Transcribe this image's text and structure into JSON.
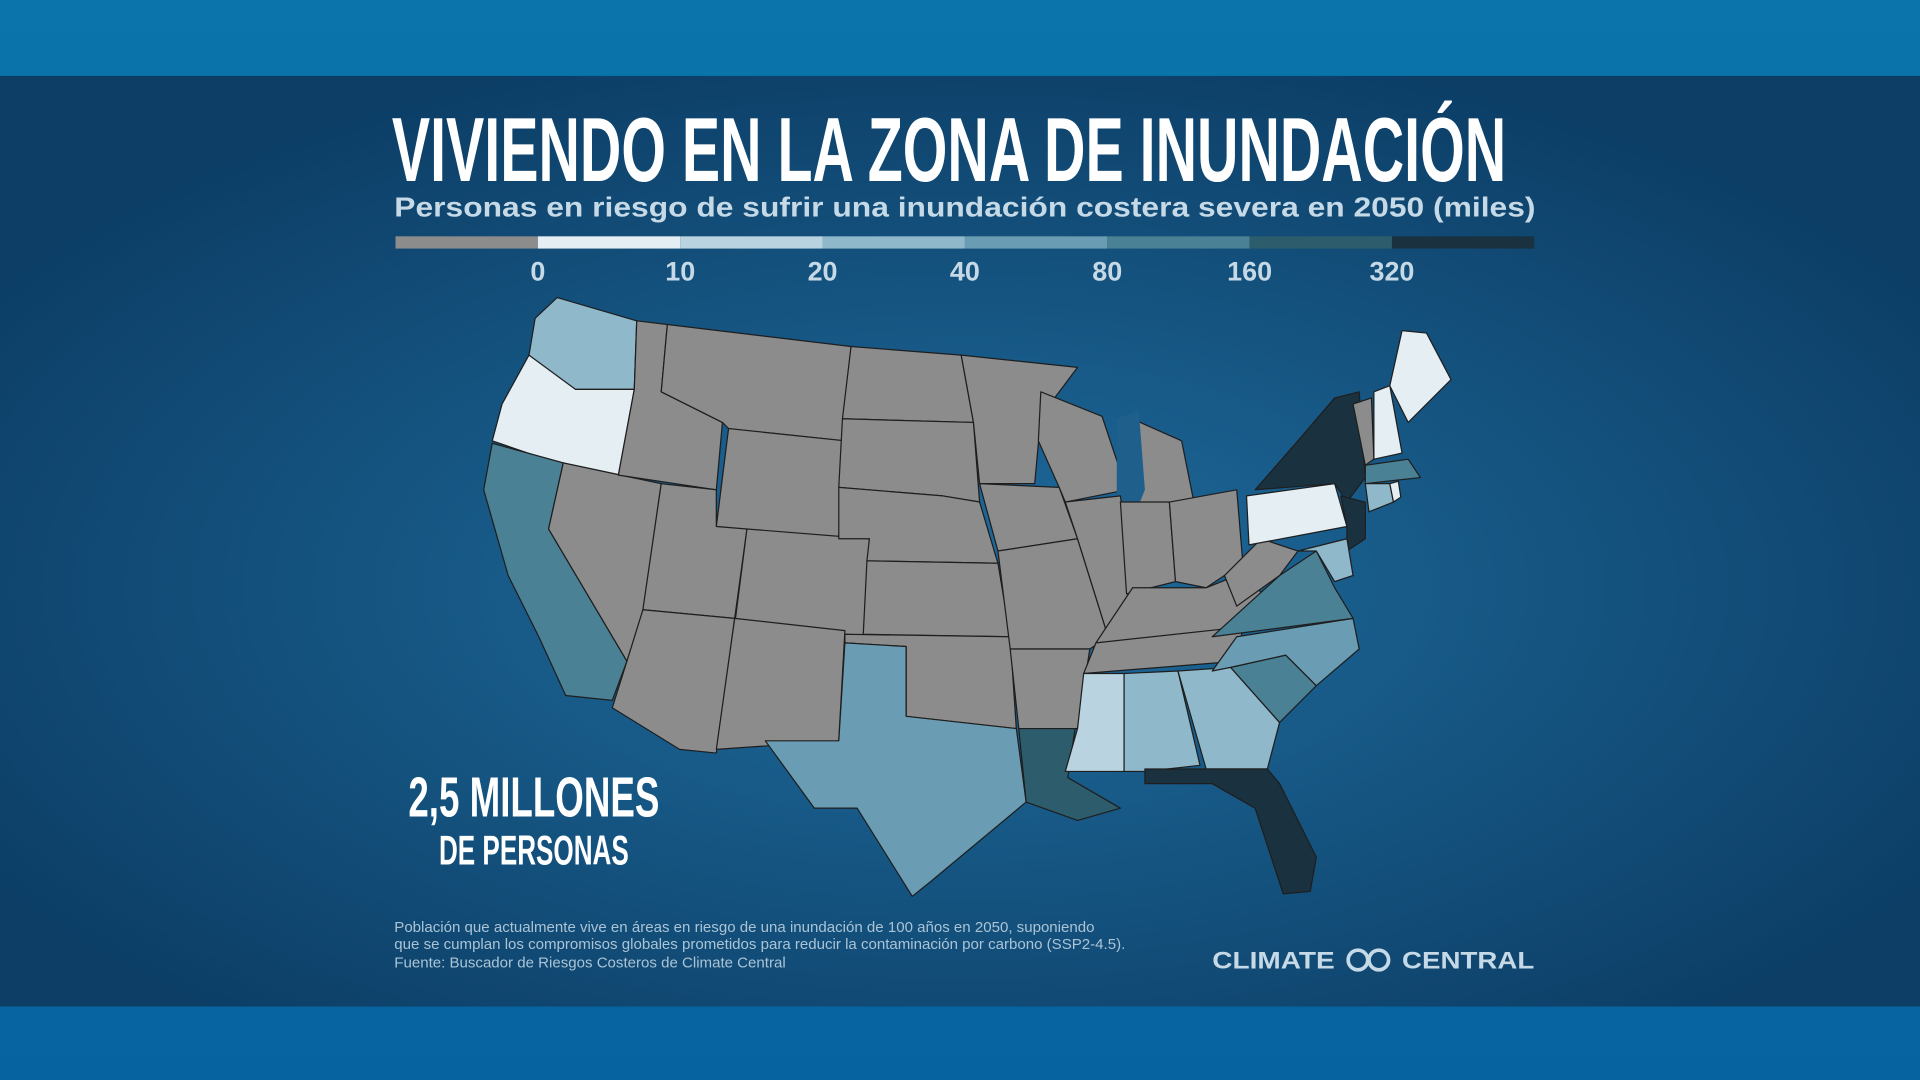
{
  "header": {
    "title": "VIVIENDO EN LA ZONA DE INUNDACIÓN",
    "subtitle": "Personas en riesgo de sufrir una inundación costera severa en 2050 (miles)"
  },
  "legend": {
    "colors": [
      "#8c8c8c",
      "#e4eef3",
      "#b9d4e0",
      "#8fb8ca",
      "#6a9db3",
      "#4a8195",
      "#2d5d6c",
      "#1a323f"
    ],
    "ticks": [
      0,
      10,
      20,
      40,
      80,
      160,
      320
    ]
  },
  "callout": {
    "value": "2,5 MILLONES",
    "unit": "DE PERSONAS"
  },
  "footnote": [
    "Población que actualmente vive en áreas en riesgo de una inundación de 100 años en 2050, suponiendo",
    "que se cumplan los compromisos globales prometidos para reducir la contaminación por carbono (SSP2-4.5).",
    "Fuente: Buscador de Riesgos Costeros de Climate Central"
  ],
  "logo": {
    "left": "CLIMATE",
    "right": "CENTRAL"
  }
}
